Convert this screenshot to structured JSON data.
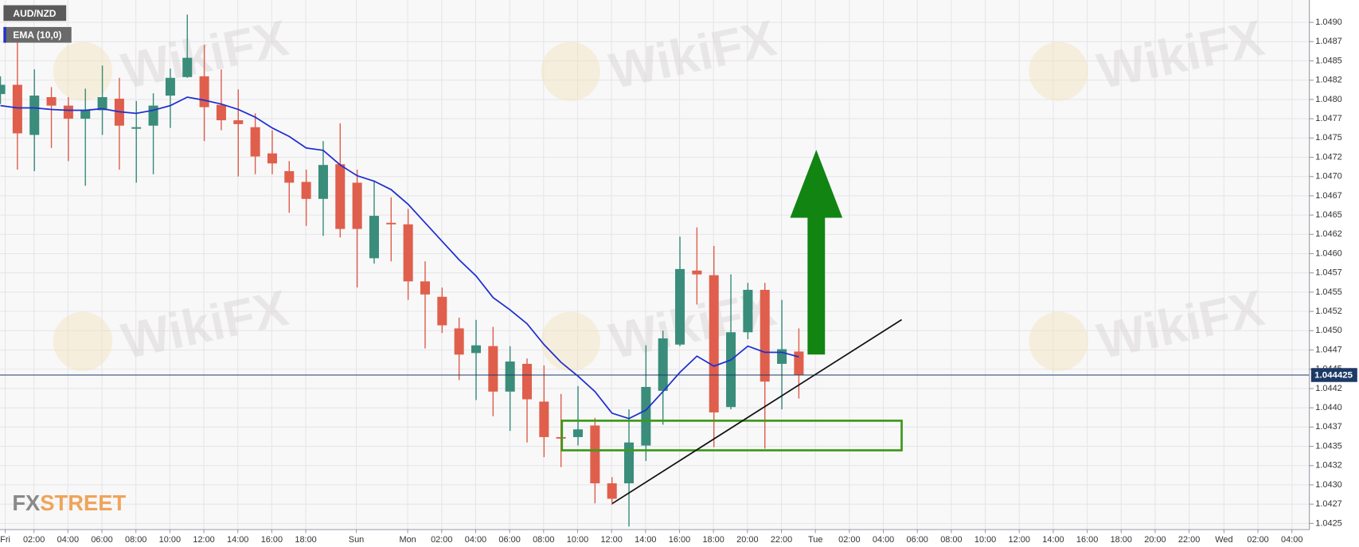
{
  "chart_data": {
    "type": "candlestick",
    "title": "AUD/NZD",
    "watermark": "WikiFX",
    "logo_fx": "FX",
    "logo_street": "STREET",
    "up_color": "#3a8d7a",
    "down_color": "#df5f4c",
    "open": [
      1.04807,
      1.04819,
      1.04754,
      1.04803,
      1.04792,
      1.04775,
      1.04786,
      1.04801,
      1.04762,
      1.04766,
      1.04805,
      1.04829,
      1.0483,
      1.04793,
      1.04773,
      1.04764,
      1.0473,
      1.04707,
      1.04693,
      1.04671,
      1.04716,
      1.04692,
      1.04594,
      1.0464,
      1.04638,
      1.04564,
      1.04544,
      1.04503,
      1.04471,
      1.0448,
      1.04421,
      1.04457,
      1.04408,
      1.04362,
      1.04362,
      1.04377,
      1.04302,
      1.04302,
      1.04351,
      1.04422,
      1.04482,
      1.04578,
      1.04572,
      1.04401,
      1.04498,
      1.04553,
      1.04457,
      1.04473
    ],
    "high": [
      1.0483,
      1.04875,
      1.04839,
      1.04816,
      1.04803,
      1.04814,
      1.04844,
      1.04828,
      1.04798,
      1.04808,
      1.0484,
      1.0491,
      1.04871,
      1.04839,
      1.04813,
      1.04782,
      1.0476,
      1.0472,
      1.04709,
      1.04746,
      1.04769,
      1.04709,
      1.04695,
      1.04673,
      1.04658,
      1.0459,
      1.04556,
      1.04517,
      1.04514,
      1.04505,
      1.0448,
      1.04464,
      1.04455,
      1.04418,
      1.04428,
      1.04387,
      1.0431,
      1.04398,
      1.04481,
      1.045,
      1.04622,
      1.04634,
      1.0461,
      1.04573,
      1.04562,
      1.04562,
      1.0454,
      1.04503
    ],
    "low": [
      1.04794,
      1.04709,
      1.04707,
      1.04737,
      1.0472,
      1.04688,
      1.04754,
      1.04709,
      1.04692,
      1.04703,
      1.04763,
      1.04828,
      1.04746,
      1.0476,
      1.047,
      1.04703,
      1.04703,
      1.04653,
      1.04636,
      1.04623,
      1.04621,
      1.04556,
      1.04587,
      1.0459,
      1.0454,
      1.04477,
      1.04497,
      1.04436,
      1.0441,
      1.04389,
      1.0437,
      1.04355,
      1.04336,
      1.04323,
      1.04351,
      1.04276,
      1.04274,
      1.04246,
      1.04331,
      1.04378,
      1.0448,
      1.04534,
      1.04349,
      1.04398,
      1.04489,
      1.04347,
      1.04398,
      1.04412
    ],
    "close": [
      1.04819,
      1.04756,
      1.04805,
      1.04792,
      1.04775,
      1.04786,
      1.04803,
      1.04766,
      1.04764,
      1.04792,
      1.04828,
      1.04854,
      1.0479,
      1.04773,
      1.04768,
      1.04726,
      1.04717,
      1.04692,
      1.04671,
      1.04715,
      1.04632,
      1.04632,
      1.04649,
      1.04638,
      1.04564,
      1.04547,
      1.04507,
      1.04469,
      1.04481,
      1.04421,
      1.0446,
      1.04411,
      1.04362,
      1.0436,
      1.04372,
      1.04302,
      1.04282,
      1.04355,
      1.04427,
      1.0449,
      1.0458,
      1.04573,
      1.04394,
      1.04498,
      1.04553,
      1.04434,
      1.04476,
      1.04443
    ],
    "series": [
      {
        "name": "EMA (10,0)",
        "color": "#1f2fd0",
        "values": [
          1.04792,
          1.04789,
          1.04789,
          1.04787,
          1.04786,
          1.04786,
          1.04788,
          1.04784,
          1.04782,
          1.04786,
          1.04792,
          1.04803,
          1.04799,
          1.04794,
          1.04787,
          1.04777,
          1.04763,
          1.04752,
          1.04737,
          1.04734,
          1.04715,
          1.04701,
          1.04694,
          1.04683,
          1.04664,
          1.0464,
          1.04616,
          1.04592,
          1.04571,
          1.04543,
          1.04527,
          1.04509,
          1.04482,
          1.04459,
          1.04441,
          1.04421,
          1.04393,
          1.04386,
          1.04397,
          1.04421,
          1.04446,
          1.04467,
          1.04454,
          1.04462,
          1.0448,
          1.04472,
          1.04472,
          1.04466
        ]
      }
    ],
    "last_price": 1.044425,
    "x_labels": [
      "Fri",
      "02:00",
      "04:00",
      "06:00",
      "08:00",
      "10:00",
      "12:00",
      "14:00",
      "16:00",
      "18:00",
      "Sun",
      "Mon",
      "02:00",
      "04:00",
      "06:00",
      "08:00",
      "10:00",
      "12:00",
      "14:00",
      "16:00",
      "18:00",
      "20:00",
      "22:00",
      "Tue",
      "02:00",
      "04:00",
      "06:00",
      "08:00",
      "10:00",
      "12:00",
      "14:00",
      "16:00",
      "18:00",
      "20:00",
      "22:00",
      "Wed",
      "02:00",
      "04:00"
    ],
    "ylim": [
      1.04242,
      1.04929
    ],
    "yticks": [
      {
        "value": 1.049,
        "label": "1.0490"
      },
      {
        "value": 1.04875,
        "label": "1.0487"
      },
      {
        "value": 1.0485,
        "label": "1.0485"
      },
      {
        "value": 1.04825,
        "label": "1.0482"
      },
      {
        "value": 1.048,
        "label": "1.0480"
      },
      {
        "value": 1.04775,
        "label": "1.0477"
      },
      {
        "value": 1.0475,
        "label": "1.0475"
      },
      {
        "value": 1.04725,
        "label": "1.0472"
      },
      {
        "value": 1.047,
        "label": "1.0470"
      },
      {
        "value": 1.04675,
        "label": "1.0467"
      },
      {
        "value": 1.0465,
        "label": "1.0465"
      },
      {
        "value": 1.04625,
        "label": "1.0462"
      },
      {
        "value": 1.046,
        "label": "1.0460"
      },
      {
        "value": 1.04575,
        "label": "1.0457"
      },
      {
        "value": 1.0455,
        "label": "1.0455"
      },
      {
        "value": 1.04525,
        "label": "1.0452"
      },
      {
        "value": 1.045,
        "label": "1.0450"
      },
      {
        "value": 1.04475,
        "label": "1.0447"
      },
      {
        "value": 1.0445,
        "label": "1.0445"
      },
      {
        "value": 1.04425,
        "label": "1.0442"
      },
      {
        "value": 1.044,
        "label": "1.0440"
      },
      {
        "value": 1.04375,
        "label": "1.0437"
      },
      {
        "value": 1.0435,
        "label": "1.0435"
      },
      {
        "value": 1.04325,
        "label": "1.0432"
      },
      {
        "value": 1.043,
        "label": "1.0430"
      },
      {
        "value": 1.04275,
        "label": "1.0427"
      },
      {
        "value": 1.0425,
        "label": "1.0425"
      }
    ],
    "grid": true
  }
}
